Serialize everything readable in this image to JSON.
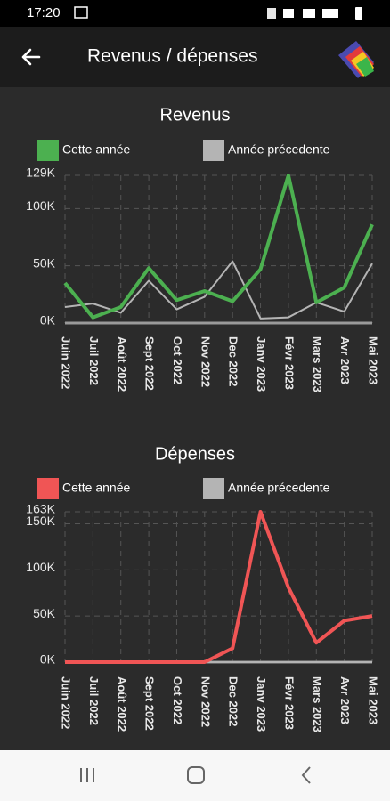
{
  "status_bar": {
    "time": "17:20"
  },
  "header": {
    "title": "Revenus / dépenses"
  },
  "chart_data": [
    {
      "type": "line",
      "title": "Revenus",
      "categories": [
        "Juin 2022",
        "Juil 2022",
        "Août 2022",
        "Sept 2022",
        "Oct 2022",
        "Nov 2022",
        "Dec 2022",
        "Janv 2023",
        "Févr 2023",
        "Mars 2023",
        "Avr 2023",
        "Mai 2023"
      ],
      "series": [
        {
          "name": "Cette année",
          "color": "#4cb050",
          "values": [
            35000,
            5000,
            14000,
            48000,
            20000,
            28000,
            19000,
            47000,
            129000,
            18000,
            31000,
            86000
          ]
        },
        {
          "name": "Année précedente",
          "color": "#b4b4b4",
          "values": [
            14000,
            17000,
            9000,
            37000,
            12000,
            23000,
            54000,
            4000,
            5000,
            18000,
            10000,
            52000
          ]
        }
      ],
      "ylim": [
        0,
        129000
      ],
      "yticks": [
        {
          "value": 0,
          "label": "0K"
        },
        {
          "value": 50000,
          "label": "50K"
        },
        {
          "value": 100000,
          "label": "100K"
        },
        {
          "value": 129000,
          "label": "129K"
        }
      ],
      "grid": true
    },
    {
      "type": "line",
      "title": "Dépenses",
      "categories": [
        "Juin 2022",
        "Juil 2022",
        "Août 2022",
        "Sept 2022",
        "Oct 2022",
        "Nov 2022",
        "Dec 2022",
        "Janv 2023",
        "Févr 2023",
        "Mars 2023",
        "Avr 2023",
        "Mai 2023"
      ],
      "series": [
        {
          "name": "Cette année",
          "color": "#f05555",
          "values": [
            0,
            0,
            0,
            0,
            0,
            0,
            15000,
            163000,
            81000,
            21000,
            45000,
            50000
          ]
        },
        {
          "name": "Année précedente",
          "color": "#b4b4b4",
          "values": [
            0,
            0,
            0,
            0,
            0,
            0,
            0,
            0,
            0,
            0,
            0,
            0
          ]
        }
      ],
      "ylim": [
        0,
        163000
      ],
      "yticks": [
        {
          "value": 0,
          "label": "0K"
        },
        {
          "value": 50000,
          "label": "50K"
        },
        {
          "value": 100000,
          "label": "100K"
        },
        {
          "value": 150000,
          "label": "150K"
        },
        {
          "value": 163000,
          "label": "163K"
        }
      ],
      "grid": true
    }
  ]
}
